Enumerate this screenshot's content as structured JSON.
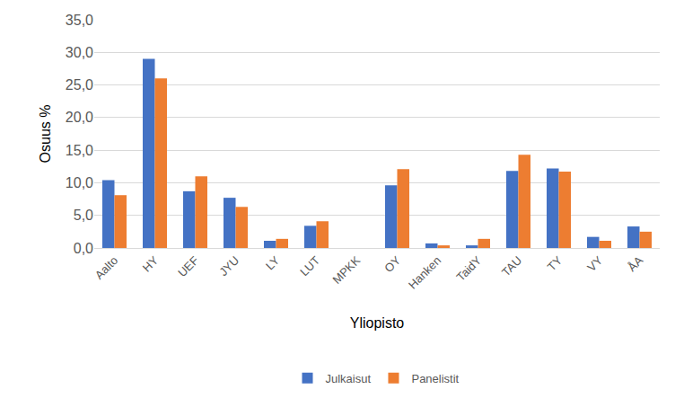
{
  "chart_data": {
    "type": "bar",
    "x_label": "Yliopisto",
    "y_label": "Osuus %",
    "categories": [
      "Aalto",
      "HY",
      "UEF",
      "JYU",
      "LY",
      "LUT",
      "MPKK",
      "OY",
      "Hanken",
      "TaidY",
      "TAU",
      "TY",
      "VY",
      "ÅA"
    ],
    "series": [
      {
        "name": "Julkaisut",
        "color": "#4472c4",
        "values": [
          10.4,
          29.0,
          8.7,
          7.7,
          1.1,
          3.4,
          0,
          9.6,
          0.7,
          0.4,
          11.8,
          12.2,
          1.7,
          3.3
        ]
      },
      {
        "name": "Panelistit",
        "color": "#ed7d31",
        "values": [
          8.1,
          26.0,
          11.0,
          6.3,
          1.4,
          4.1,
          0,
          12.1,
          0.4,
          1.4,
          14.3,
          11.7,
          1.1,
          2.5
        ]
      }
    ],
    "ylim": [
      0,
      35
    ],
    "yticks": [
      {
        "value": 0,
        "label": "0,0"
      },
      {
        "value": 5,
        "label": "5,0"
      },
      {
        "value": 10,
        "label": "10,0"
      },
      {
        "value": 15,
        "label": "15,0"
      },
      {
        "value": 20,
        "label": "20,0"
      },
      {
        "value": 25,
        "label": "25,0"
      },
      {
        "value": 30,
        "label": "30,0"
      },
      {
        "value": 35,
        "label": "35,0"
      }
    ],
    "grid": true,
    "legend": "bottom"
  }
}
